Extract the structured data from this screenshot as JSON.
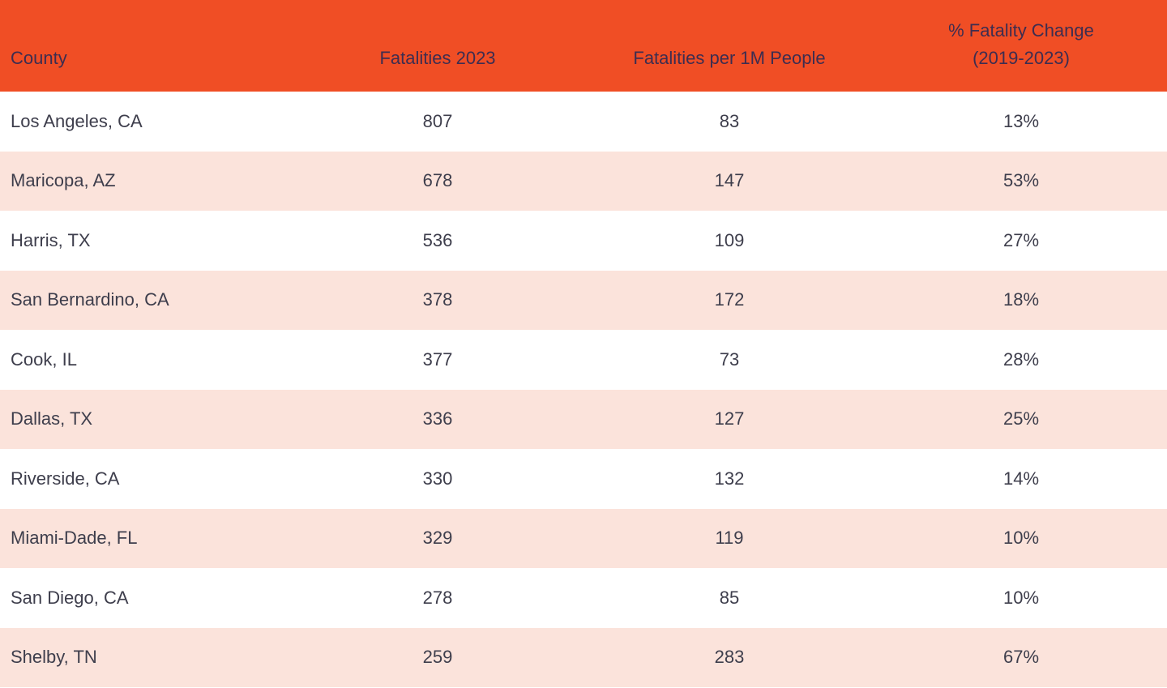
{
  "colors": {
    "page_bg": "#FFFFFF",
    "header_bg": "#F04E25",
    "header_text": "#3D2D50",
    "body_text": "#3E3E4C",
    "row_bg": "#FFFFFF",
    "row_alt_bg": "#FBE3DB"
  },
  "table": {
    "columns": [
      "County",
      "Fatalities 2023",
      "Fatalities per 1M People",
      "% Fatality Change\n(2019-2023)"
    ],
    "rows": [
      [
        "Los Angeles, CA",
        "807",
        "83",
        "13%"
      ],
      [
        "Maricopa, AZ",
        "678",
        "147",
        "53%"
      ],
      [
        "Harris, TX",
        "536",
        "109",
        "27%"
      ],
      [
        "San Bernardino, CA",
        "378",
        "172",
        "18%"
      ],
      [
        "Cook, IL",
        "377",
        "73",
        "28%"
      ],
      [
        "Dallas, TX",
        "336",
        "127",
        "25%"
      ],
      [
        "Riverside, CA",
        "330",
        "132",
        "14%"
      ],
      [
        "Miami-Dade, FL",
        "329",
        "119",
        "10%"
      ],
      [
        "San Diego, CA",
        "278",
        "85",
        "10%"
      ],
      [
        "Shelby, TN",
        "259",
        "283",
        "67%"
      ]
    ]
  },
  "chart_data": {
    "type": "table",
    "title": "",
    "columns": [
      "County",
      "Fatalities 2023",
      "Fatalities per 1M People",
      "% Fatality Change (2019-2023)"
    ],
    "rows": [
      {
        "county": "Los Angeles, CA",
        "fatalities_2023": 807,
        "fatalities_per_1m_people": 83,
        "pct_fatality_change_2019_2023": "13%"
      },
      {
        "county": "Maricopa, AZ",
        "fatalities_2023": 678,
        "fatalities_per_1m_people": 147,
        "pct_fatality_change_2019_2023": "53%"
      },
      {
        "county": "Harris, TX",
        "fatalities_2023": 536,
        "fatalities_per_1m_people": 109,
        "pct_fatality_change_2019_2023": "27%"
      },
      {
        "county": "San Bernardino, CA",
        "fatalities_2023": 378,
        "fatalities_per_1m_people": 172,
        "pct_fatality_change_2019_2023": "18%"
      },
      {
        "county": "Cook, IL",
        "fatalities_2023": 377,
        "fatalities_per_1m_people": 73,
        "pct_fatality_change_2019_2023": "28%"
      },
      {
        "county": "Dallas, TX",
        "fatalities_2023": 336,
        "fatalities_per_1m_people": 127,
        "pct_fatality_change_2019_2023": "25%"
      },
      {
        "county": "Riverside, CA",
        "fatalities_2023": 330,
        "fatalities_per_1m_people": 132,
        "pct_fatality_change_2019_2023": "14%"
      },
      {
        "county": "Miami-Dade, FL",
        "fatalities_2023": 329,
        "fatalities_per_1m_people": 119,
        "pct_fatality_change_2019_2023": "10%"
      },
      {
        "county": "San Diego, CA",
        "fatalities_2023": 278,
        "fatalities_per_1m_people": 85,
        "pct_fatality_change_2019_2023": "10%"
      },
      {
        "county": "Shelby, TN",
        "fatalities_2023": 259,
        "fatalities_per_1m_people": 283,
        "pct_fatality_change_2019_2023": "67%"
      }
    ],
    "layout": {
      "header_alignment": [
        "left",
        "center",
        "center",
        "center"
      ],
      "row_striping": "alternating white and light pink, pink on even rows",
      "grid": false
    }
  }
}
